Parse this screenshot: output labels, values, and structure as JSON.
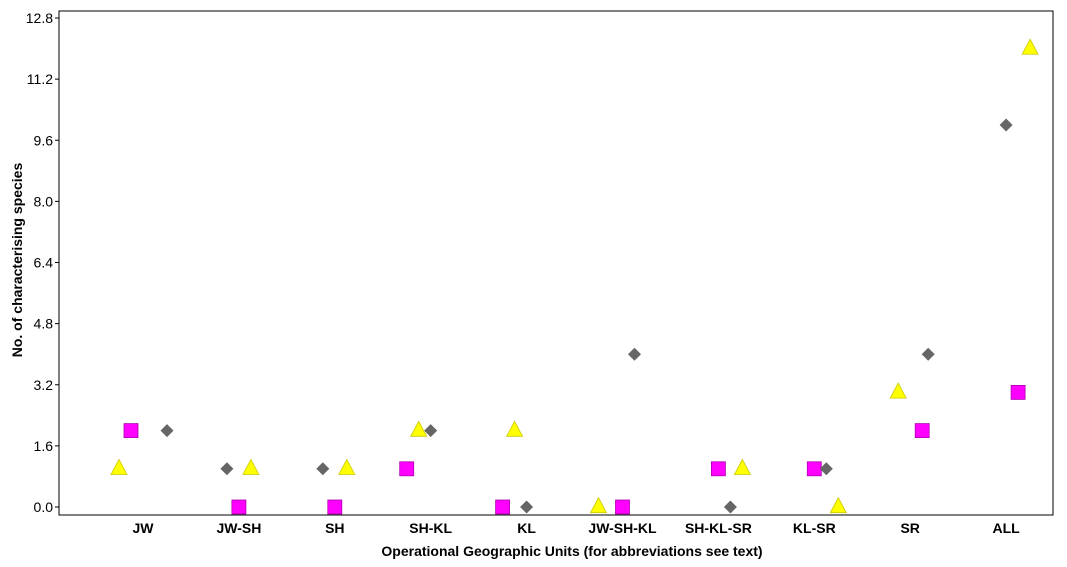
{
  "chart_data": {
    "type": "scatter",
    "xlabel": "Operational Geographic Units (for abbreviations see text)",
    "ylabel": "No. of characterising species",
    "categories": [
      "JW",
      "JW-SH",
      "SH",
      "SH-KL",
      "KL",
      "JW-SH-KL",
      "SH-KL-SR",
      "KL-SR",
      "SR",
      "ALL"
    ],
    "ylim": [
      0,
      12.8
    ],
    "yticks": [
      "0.0",
      "1.6",
      "3.2",
      "4.8",
      "6.4",
      "8.0",
      "9.6",
      "11.2",
      "12.8"
    ],
    "grid": false,
    "series": [
      {
        "marker": "triangle",
        "color": "#ffff00",
        "points": [
          {
            "category": "JW",
            "offset": -1,
            "y": 1
          },
          {
            "category": "JW-SH",
            "offset": 0.5,
            "y": 1
          },
          {
            "category": "SH",
            "offset": 0.5,
            "y": 1
          },
          {
            "category": "SH-KL",
            "offset": -0.5,
            "y": 2
          },
          {
            "category": "KL",
            "offset": -0.5,
            "y": 2
          },
          {
            "category": "JW-SH-KL",
            "offset": -1,
            "y": 0
          },
          {
            "category": "SH-KL-SR",
            "offset": 1,
            "y": 1
          },
          {
            "category": "KL-SR",
            "offset": 1,
            "y": 0
          },
          {
            "category": "SR",
            "offset": -0.5,
            "y": 3
          },
          {
            "category": "ALL",
            "offset": 1,
            "y": 12
          }
        ]
      },
      {
        "marker": "square",
        "color": "#ff00ff",
        "points": [
          {
            "category": "JW",
            "offset": -0.5,
            "y": 2
          },
          {
            "category": "JW-SH",
            "offset": 0,
            "y": 0
          },
          {
            "category": "SH",
            "offset": 0,
            "y": 0
          },
          {
            "category": "SH-KL",
            "offset": -1,
            "y": 1
          },
          {
            "category": "KL",
            "offset": -1,
            "y": 0
          },
          {
            "category": "JW-SH-KL",
            "offset": 0,
            "y": 0
          },
          {
            "category": "SH-KL-SR",
            "offset": 0,
            "y": 1
          },
          {
            "category": "KL-SR",
            "offset": 0,
            "y": 1
          },
          {
            "category": "SR",
            "offset": 0.5,
            "y": 2
          },
          {
            "category": "ALL",
            "offset": 0.5,
            "y": 3
          }
        ]
      },
      {
        "marker": "diamond",
        "color": "#666666",
        "points": [
          {
            "category": "JW",
            "offset": 1,
            "y": 2
          },
          {
            "category": "JW-SH",
            "offset": -0.5,
            "y": 1
          },
          {
            "category": "SH",
            "offset": -0.5,
            "y": 1
          },
          {
            "category": "SH-KL",
            "offset": 0,
            "y": 2
          },
          {
            "category": "KL",
            "offset": 0,
            "y": 0
          },
          {
            "category": "JW-SH-KL",
            "offset": 0.5,
            "y": 4
          },
          {
            "category": "SH-KL-SR",
            "offset": 0.5,
            "y": 0
          },
          {
            "category": "KL-SR",
            "offset": 0.5,
            "y": 1
          },
          {
            "category": "SR",
            "offset": 0.75,
            "y": 4
          },
          {
            "category": "ALL",
            "offset": 0,
            "y": 10
          }
        ]
      }
    ]
  }
}
